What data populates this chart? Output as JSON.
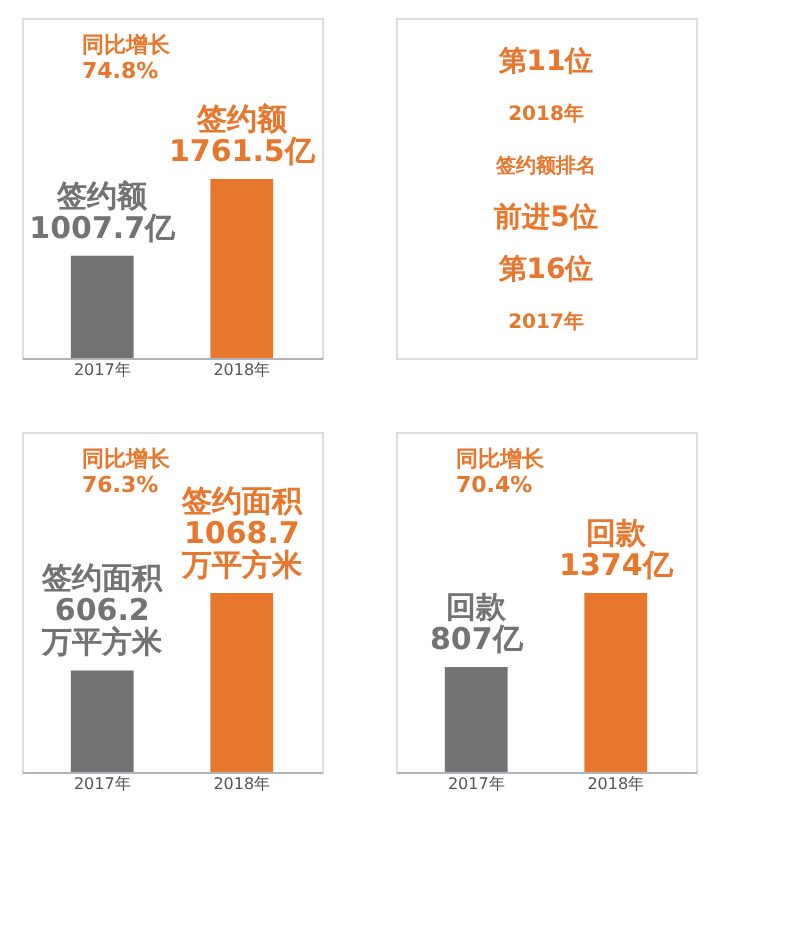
{
  "chart_data": [
    {
      "type": "bar",
      "categories": [
        "2017年",
        "2018年"
      ],
      "values": [
        1007.7,
        1761.5
      ],
      "colors": [
        "#747272",
        "#e8772e"
      ],
      "value_labels": [
        "签约额\n1007.7亿",
        "签约额\n1761.5亿"
      ],
      "annotations": [
        "同比增长\n74.8%"
      ]
    },
    {
      "type": "other",
      "annotations": [
        "第11位",
        "2018年",
        "签约额排名",
        "前进5位",
        "第16位",
        "2017年"
      ]
    },
    {
      "type": "bar",
      "categories": [
        "2017年",
        "2018年"
      ],
      "values": [
        606.2,
        1068.7
      ],
      "colors": [
        "#747272",
        "#e8772e"
      ],
      "value_labels": [
        "签约面积\n606.2\n万平方米",
        "签约面积\n1068.7\n万平方米"
      ],
      "annotations": [
        "同比增长\n76.3%"
      ]
    },
    {
      "type": "bar",
      "categories": [
        "2017年",
        "2018年"
      ],
      "values": [
        807,
        1374
      ],
      "colors": [
        "#747272",
        "#e8772e"
      ],
      "value_labels": [
        "回款\n807亿",
        "回款\n1374亿"
      ],
      "annotations": [
        "同比增长\n70.4%"
      ]
    }
  ]
}
